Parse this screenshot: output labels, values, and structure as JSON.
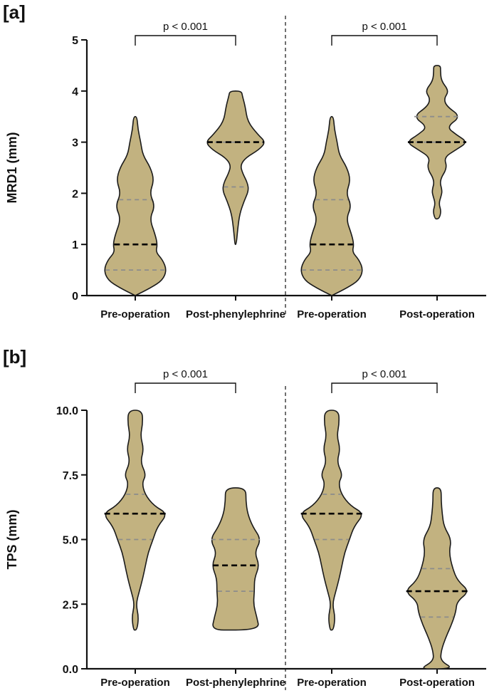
{
  "figure": {
    "violin_fill": "#c2b280",
    "median_color": "#000000",
    "quartile_color": "#8c8c8c"
  },
  "chart_data": [
    {
      "panel_label": "[a]",
      "type": "violin",
      "ylabel": "MRD1 (mm)",
      "ylim": [
        0,
        5
      ],
      "yticks": [
        "0",
        "1",
        "2",
        "3",
        "4",
        "5"
      ],
      "categories": [
        "Pre-operation",
        "Post-phenylephrine",
        "Pre-operation",
        "Post-operation"
      ],
      "divider_after_index": 1,
      "significance": [
        {
          "from": 0,
          "to": 1,
          "label": "p < 0.001"
        },
        {
          "from": 2,
          "to": 3,
          "label": "p < 0.001"
        }
      ],
      "violins": [
        {
          "category": "Pre-operation",
          "min": 0,
          "max": 3.5,
          "median": 1,
          "q1": 0.5,
          "q3": 1.875,
          "density": [
            [
              0,
              0
            ],
            [
              0.15,
              0.45
            ],
            [
              0.3,
              0.8
            ],
            [
              0.5,
              0.92
            ],
            [
              0.7,
              0.8
            ],
            [
              0.85,
              0.6
            ],
            [
              1.0,
              0.65
            ],
            [
              1.2,
              0.58
            ],
            [
              1.5,
              0.42
            ],
            [
              1.75,
              0.58
            ],
            [
              2.0,
              0.42
            ],
            [
              2.25,
              0.55
            ],
            [
              2.5,
              0.45
            ],
            [
              2.75,
              0.22
            ],
            [
              3.0,
              0.16
            ],
            [
              3.25,
              0.08
            ],
            [
              3.5,
              0.05
            ]
          ]
        },
        {
          "category": "Post-phenylephrine",
          "min": 1,
          "max": 4,
          "median": 3,
          "q1": 2.125,
          "q3": 3,
          "density": [
            [
              1,
              0.02
            ],
            [
              1.3,
              0.06
            ],
            [
              1.6,
              0.12
            ],
            [
              1.85,
              0.25
            ],
            [
              2.05,
              0.38
            ],
            [
              2.2,
              0.35
            ],
            [
              2.4,
              0.2
            ],
            [
              2.55,
              0.14
            ],
            [
              2.7,
              0.3
            ],
            [
              2.85,
              0.68
            ],
            [
              3.0,
              0.88
            ],
            [
              3.15,
              0.65
            ],
            [
              3.4,
              0.35
            ],
            [
              3.7,
              0.28
            ],
            [
              3.9,
              0.2
            ],
            [
              4.0,
              0.17
            ]
          ]
        },
        {
          "category": "Pre-operation",
          "min": 0,
          "max": 3.5,
          "median": 1,
          "q1": 0.5,
          "q3": 1.875,
          "density": [
            [
              0,
              0
            ],
            [
              0.15,
              0.45
            ],
            [
              0.3,
              0.8
            ],
            [
              0.5,
              0.92
            ],
            [
              0.7,
              0.8
            ],
            [
              0.85,
              0.6
            ],
            [
              1.0,
              0.65
            ],
            [
              1.2,
              0.58
            ],
            [
              1.5,
              0.42
            ],
            [
              1.75,
              0.58
            ],
            [
              2.0,
              0.42
            ],
            [
              2.25,
              0.55
            ],
            [
              2.5,
              0.45
            ],
            [
              2.75,
              0.22
            ],
            [
              3.0,
              0.16
            ],
            [
              3.25,
              0.08
            ],
            [
              3.5,
              0.05
            ]
          ]
        },
        {
          "category": "Post-operation",
          "min": 1.5,
          "max": 4.5,
          "median": 3,
          "q1": 3,
          "q3": 3.5,
          "density": [
            [
              1.5,
              0.06
            ],
            [
              1.65,
              0.12
            ],
            [
              1.8,
              0.05
            ],
            [
              1.95,
              0.12
            ],
            [
              2.05,
              0.15
            ],
            [
              2.25,
              0.07
            ],
            [
              2.5,
              0.3
            ],
            [
              2.7,
              0.2
            ],
            [
              2.85,
              0.55
            ],
            [
              3.0,
              0.9
            ],
            [
              3.15,
              0.55
            ],
            [
              3.3,
              0.28
            ],
            [
              3.5,
              0.7
            ],
            [
              3.7,
              0.28
            ],
            [
              3.85,
              0.2
            ],
            [
              4.0,
              0.35
            ],
            [
              4.2,
              0.12
            ],
            [
              4.4,
              0.1
            ],
            [
              4.5,
              0.1
            ]
          ]
        }
      ]
    },
    {
      "panel_label": "[b]",
      "type": "violin",
      "ylabel": "TPS (mm)",
      "ylim": [
        0,
        10
      ],
      "yticks": [
        "0.0",
        "2.5",
        "5.0",
        "7.5",
        "10.0"
      ],
      "categories": [
        "Pre-operation",
        "Post-phenylephrine",
        "Pre-operation",
        "Post-operation"
      ],
      "divider_after_index": 1,
      "significance": [
        {
          "from": 0,
          "to": 1,
          "label": "p < 0.001"
        },
        {
          "from": 2,
          "to": 3,
          "label": "p < 0.001"
        }
      ],
      "violins": [
        {
          "category": "Pre-operation",
          "min": 1.5,
          "max": 10,
          "median": 6,
          "q1": 5,
          "q3": 6.75,
          "density": [
            [
              1.5,
              0.05
            ],
            [
              2.0,
              0.1
            ],
            [
              2.5,
              0.02
            ],
            [
              3.0,
              0.12
            ],
            [
              3.5,
              0.22
            ],
            [
              4.0,
              0.3
            ],
            [
              4.5,
              0.38
            ],
            [
              5.0,
              0.52
            ],
            [
              5.5,
              0.65
            ],
            [
              6.0,
              0.95
            ],
            [
              6.3,
              0.55
            ],
            [
              6.75,
              0.28
            ],
            [
              7.2,
              0.2
            ],
            [
              7.5,
              0.32
            ],
            [
              8.0,
              0.15
            ],
            [
              8.5,
              0.25
            ],
            [
              9.0,
              0.15
            ],
            [
              9.5,
              0.22
            ],
            [
              10.0,
              0.2
            ]
          ]
        },
        {
          "category": "Post-phenylephrine",
          "min": 1.5,
          "max": 7,
          "median": 4,
          "q1": 3,
          "q3": 5,
          "density": [
            [
              1.5,
              0.7
            ],
            [
              2.0,
              0.62
            ],
            [
              2.5,
              0.52
            ],
            [
              3.0,
              0.55
            ],
            [
              3.5,
              0.55
            ],
            [
              4.0,
              0.7
            ],
            [
              4.5,
              0.55
            ],
            [
              5.0,
              0.75
            ],
            [
              5.5,
              0.5
            ],
            [
              6.0,
              0.35
            ],
            [
              6.5,
              0.3
            ],
            [
              7.0,
              0.3
            ]
          ]
        },
        {
          "category": "Pre-operation",
          "min": 1.5,
          "max": 10,
          "median": 6,
          "q1": 5,
          "q3": 6.75,
          "density": [
            [
              1.5,
              0.05
            ],
            [
              2.0,
              0.1
            ],
            [
              2.5,
              0.02
            ],
            [
              3.0,
              0.12
            ],
            [
              3.5,
              0.22
            ],
            [
              4.0,
              0.3
            ],
            [
              4.5,
              0.38
            ],
            [
              5.0,
              0.52
            ],
            [
              5.5,
              0.65
            ],
            [
              6.0,
              0.95
            ],
            [
              6.3,
              0.55
            ],
            [
              6.75,
              0.28
            ],
            [
              7.2,
              0.2
            ],
            [
              7.5,
              0.32
            ],
            [
              8.0,
              0.15
            ],
            [
              8.5,
              0.25
            ],
            [
              9.0,
              0.15
            ],
            [
              9.5,
              0.22
            ],
            [
              10.0,
              0.2
            ]
          ]
        },
        {
          "category": "Post-operation",
          "min": 0,
          "max": 7,
          "median": 3,
          "q1": 2,
          "q3": 3.875,
          "density": [
            [
              0,
              0.5
            ],
            [
              0.3,
              0.1
            ],
            [
              0.7,
              0.12
            ],
            [
              1.2,
              0.25
            ],
            [
              1.7,
              0.42
            ],
            [
              2.2,
              0.55
            ],
            [
              2.6,
              0.58
            ],
            [
              3.0,
              0.95
            ],
            [
              3.4,
              0.6
            ],
            [
              3.9,
              0.45
            ],
            [
              4.5,
              0.35
            ],
            [
              5.0,
              0.42
            ],
            [
              5.5,
              0.2
            ],
            [
              6.0,
              0.15
            ],
            [
              6.5,
              0.12
            ],
            [
              7.0,
              0.12
            ]
          ]
        }
      ]
    }
  ]
}
